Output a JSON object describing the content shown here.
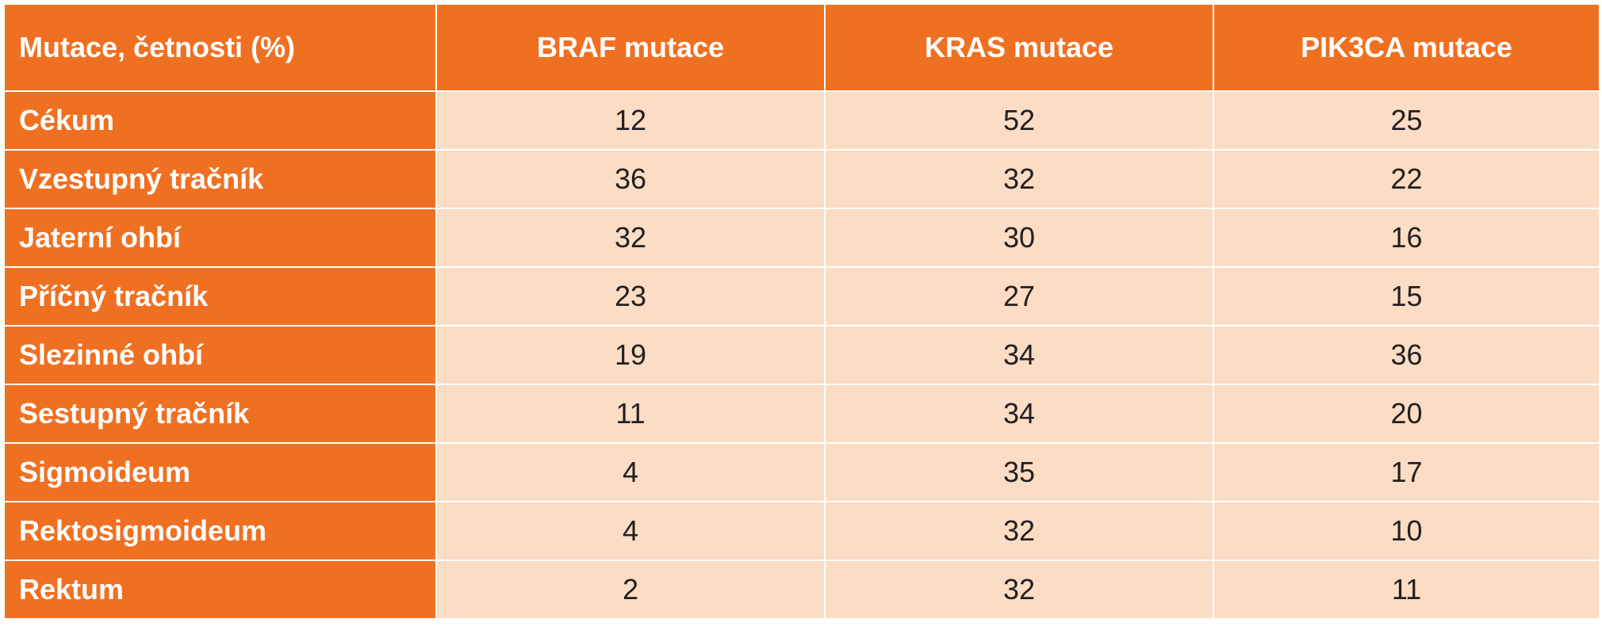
{
  "table": {
    "headers": [
      "Mutace, četnosti (%)",
      "BRAF mutace",
      "KRAS mutace",
      "PIK3CA mutace"
    ],
    "rows": [
      {
        "label": "Cékum",
        "values": [
          "12",
          "52",
          "25"
        ]
      },
      {
        "label": "Vzestupný tračník",
        "values": [
          "36",
          "32",
          "22"
        ]
      },
      {
        "label": "Jaterní ohbí",
        "values": [
          "32",
          "30",
          "16"
        ]
      },
      {
        "label": "Příčný tračník",
        "values": [
          "23",
          "27",
          "15"
        ]
      },
      {
        "label": "Slezinné ohbí",
        "values": [
          "19",
          "34",
          "36"
        ]
      },
      {
        "label": "Sestupný tračník",
        "values": [
          "11",
          "34",
          "20"
        ]
      },
      {
        "label": "Sigmoideum",
        "values": [
          "4",
          "35",
          "17"
        ]
      },
      {
        "label": "Rektosigmoideum",
        "values": [
          "4",
          "32",
          "10"
        ]
      },
      {
        "label": "Rektum",
        "values": [
          "2",
          "32",
          "11"
        ]
      }
    ]
  },
  "colors": {
    "header_orange": "#f07022",
    "cell_peach": "#fbdcc4",
    "header_text": "#ffffff",
    "cell_text": "#231f20"
  }
}
